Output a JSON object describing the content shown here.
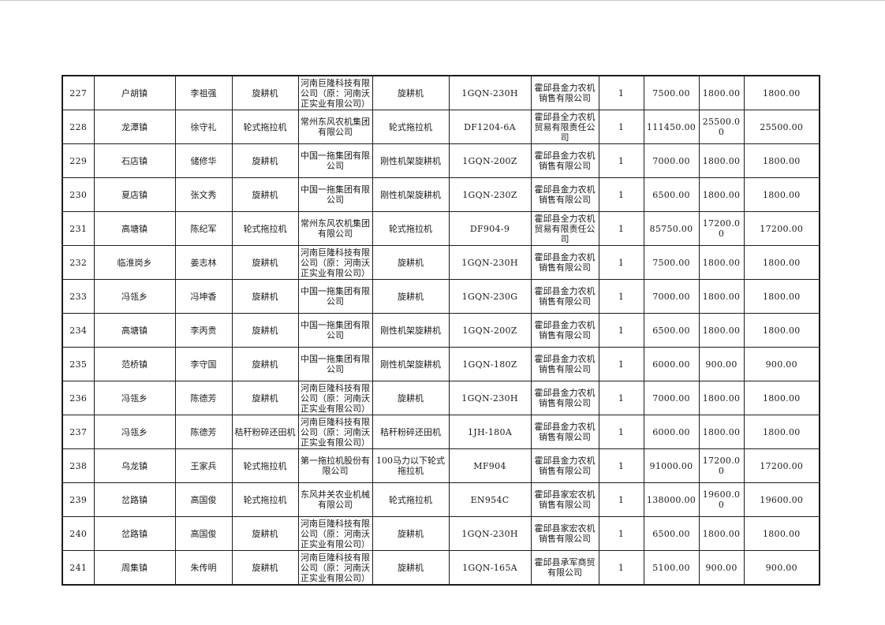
{
  "page": {
    "background_color": "#ffffff",
    "top_rule_color": "#c8c8c8"
  },
  "table": {
    "border_color": "#1c1c1c",
    "text_color": "#1a1a1a",
    "rows": [
      {
        "cells": [
          "227",
          "户胡镇",
          "李祖强",
          "旋耕机",
          "河南巨隆科技有限公司（原：河南沃正实业有限公司）",
          "旋耕机",
          "1GQN-230H",
          "霍邱县金力农机销售有限公司",
          "1",
          "7500.00",
          "1800.00",
          "1800.00"
        ]
      },
      {
        "cells": [
          "228",
          "龙潭镇",
          "徐守礼",
          "轮式拖拉机",
          "常州东风农机集团有限公司",
          "轮式拖拉机",
          "DF1204-6A",
          "霍邱县全力农机贸易有限责任公司",
          "1",
          "111450.00",
          "25500.00",
          "25500.00"
        ]
      },
      {
        "cells": [
          "229",
          "石店镇",
          "储修华",
          "旋耕机",
          "中国一拖集团有限公司",
          "刚性机架旋耕机",
          "1GQN-200Z",
          "霍邱县金力农机销售有限公司",
          "1",
          "7000.00",
          "1800.00",
          "1800.00"
        ]
      },
      {
        "cells": [
          "230",
          "夏店镇",
          "张文秀",
          "旋耕机",
          "中国一拖集团有限公司",
          "刚性机架旋耕机",
          "1GQN-230Z",
          "霍邱县金力农机销售有限公司",
          "1",
          "6500.00",
          "1800.00",
          "1800.00"
        ]
      },
      {
        "cells": [
          "231",
          "高塘镇",
          "陈纪军",
          "轮式拖拉机",
          "常州东风农机集团有限公司",
          "轮式拖拉机",
          "DF904-9",
          "霍邱县全力农机贸易有限责任公司",
          "1",
          "85750.00",
          "17200.00",
          "17200.00"
        ]
      },
      {
        "cells": [
          "232",
          "临淮岗乡",
          "姜志林",
          "旋耕机",
          "河南巨隆科技有限公司（原：河南沃正实业有限公司）",
          "旋耕机",
          "1GQN-230H",
          "霍邱县金力农机销售有限公司",
          "1",
          "7500.00",
          "1800.00",
          "1800.00"
        ]
      },
      {
        "cells": [
          "233",
          "冯瓴乡",
          "冯坤香",
          "旋耕机",
          "中国一拖集团有限公司",
          "旋耕机",
          "1GQN-230G",
          "霍邱县金力农机销售有限公司",
          "1",
          "7000.00",
          "1800.00",
          "1800.00"
        ]
      },
      {
        "cells": [
          "234",
          "高塘镇",
          "李丙贵",
          "旋耕机",
          "中国一拖集团有限公司",
          "刚性机架旋耕机",
          "1GQN-200Z",
          "霍邱县金力农机销售有限公司",
          "1",
          "6500.00",
          "1800.00",
          "1800.00"
        ]
      },
      {
        "cells": [
          "235",
          "范桥镇",
          "李守国",
          "旋耕机",
          "中国一拖集团有限公司",
          "刚性机架旋耕机",
          "1GQN-180Z",
          "霍邱县金力农机销售有限公司",
          "1",
          "6000.00",
          "900.00",
          "900.00"
        ]
      },
      {
        "cells": [
          "236",
          "冯瓴乡",
          "陈德芳",
          "旋耕机",
          "河南巨隆科技有限公司（原：河南沃正实业有限公司）",
          "旋耕机",
          "1GQN-230H",
          "霍邱县金力农机销售有限公司",
          "1",
          "7000.00",
          "1800.00",
          "1800.00"
        ]
      },
      {
        "cells": [
          "237",
          "冯瓴乡",
          "陈德芳",
          "秸秆粉碎还田机",
          "河南巨隆科技有限公司（原：河南沃正实业有限公司）",
          "秸秆粉碎还田机",
          "1JH-180A",
          "霍邱县金力农机销售有限公司",
          "1",
          "6000.00",
          "1800.00",
          "1800.00"
        ]
      },
      {
        "cells": [
          "238",
          "乌龙镇",
          "王家兵",
          "轮式拖拉机",
          "第一拖拉机股份有限公司",
          "100马力以下轮式拖拉机",
          "MF904",
          "霍邱县金力农机销售有限公司",
          "1",
          "91000.00",
          "17200.00",
          "17200.00"
        ]
      },
      {
        "cells": [
          "239",
          "岔路镇",
          "高国俊",
          "轮式拖拉机",
          "东风井关农业机械有限公司",
          "轮式拖拉机",
          "EN954C",
          "霍邱县家宏农机销售有限公司",
          "1",
          "138000.00",
          "19600.00",
          "19600.00"
        ]
      },
      {
        "cells": [
          "240",
          "岔路镇",
          "高国俊",
          "旋耕机",
          "河南巨隆科技有限公司（原：河南沃正实业有限公司）",
          "旋耕机",
          "1GQN-230H",
          "霍邱县家宏农机销售有限公司",
          "1",
          "6500.00",
          "1800.00",
          "1800.00"
        ]
      },
      {
        "cells": [
          "241",
          "周集镇",
          "朱传明",
          "旋耕机",
          "河南巨隆科技有限公司（原：河南沃正实业有限公司）",
          "旋耕机",
          "1GQN-165A",
          "霍邱县承军商贸有限公司",
          "1",
          "5100.00",
          "900.00",
          "900.00"
        ]
      }
    ]
  }
}
